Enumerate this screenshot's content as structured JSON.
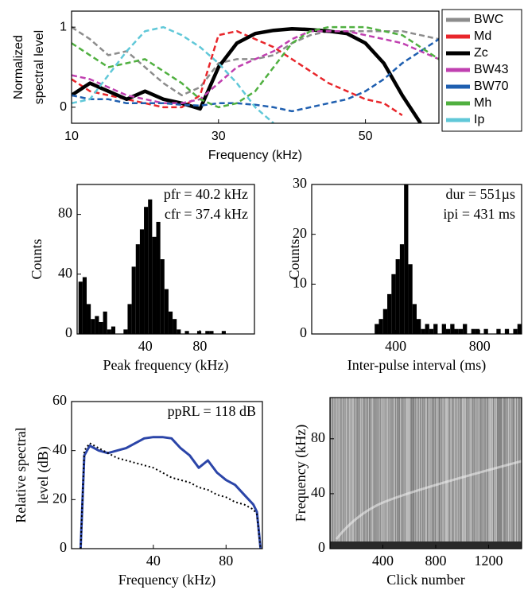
{
  "chart_data": [
    {
      "type": "line",
      "ylabel": [
        "Normalized",
        "spectral level"
      ],
      "xlabel": "Frequency (kHz)",
      "x": [
        10,
        12.5,
        15,
        17.5,
        20,
        22.5,
        25,
        27.5,
        30,
        32.5,
        35,
        37.5,
        40,
        42.5,
        45,
        47.5,
        50,
        52.5,
        55,
        57.5,
        60
      ],
      "xlim": [
        10,
        60
      ],
      "xticks": [
        10,
        30,
        50
      ],
      "ylim": [
        -0.2,
        1.2
      ],
      "yticks": [
        0,
        1
      ],
      "legend": "outside-right",
      "grid": false,
      "series": [
        {
          "name": "BWC",
          "color": "#8c8c8c",
          "line_style": "dashed",
          "line_width": 2.5,
          "values": [
            1.0,
            0.85,
            0.65,
            0.7,
            0.5,
            0.3,
            0.15,
            0.25,
            0.55,
            0.6,
            0.6,
            0.65,
            0.8,
            0.9,
            0.95,
            0.95,
            0.95,
            0.95,
            0.95,
            0.9,
            0.85
          ]
        },
        {
          "name": "Md",
          "color": "#e8262b",
          "line_style": "dashed",
          "line_width": 2.5,
          "values": [
            0.35,
            0.2,
            0.15,
            0.1,
            0.05,
            0.0,
            0.0,
            0.15,
            0.9,
            0.95,
            0.85,
            0.75,
            0.6,
            0.45,
            0.3,
            0.2,
            0.1,
            0.05,
            -0.1,
            null,
            null
          ]
        },
        {
          "name": "Zc",
          "color": "#000000",
          "line_style": "solid",
          "line_width": 4.5,
          "values": [
            0.15,
            0.3,
            0.2,
            0.1,
            0.2,
            0.1,
            0.05,
            -0.02,
            0.5,
            0.8,
            0.92,
            0.96,
            0.98,
            0.97,
            0.95,
            0.92,
            0.8,
            0.55,
            0.15,
            -0.2,
            null
          ]
        },
        {
          "name": "BW43",
          "color": "#c040b0",
          "line_style": "dashed",
          "line_width": 2.5,
          "values": [
            0.4,
            0.35,
            0.25,
            0.15,
            0.1,
            0.05,
            0.05,
            0.1,
            0.3,
            0.5,
            0.6,
            0.7,
            0.85,
            0.95,
            0.95,
            0.95,
            0.9,
            0.85,
            0.8,
            0.7,
            0.6
          ]
        },
        {
          "name": "BW70",
          "color": "#1f5fb0",
          "line_style": "dashed",
          "line_width": 2.5,
          "values": [
            0.15,
            0.1,
            0.1,
            0.05,
            0.05,
            0.05,
            0.03,
            0.02,
            0.05,
            0.05,
            0.03,
            0.0,
            -0.05,
            0.0,
            0.05,
            0.1,
            0.2,
            0.35,
            0.55,
            0.7,
            0.85
          ]
        },
        {
          "name": "Mh",
          "color": "#50b040",
          "line_style": "dashed",
          "line_width": 2.5,
          "values": [
            0.8,
            0.65,
            0.5,
            0.55,
            0.6,
            0.45,
            0.3,
            0.1,
            0.0,
            0.05,
            0.2,
            0.5,
            0.8,
            0.95,
            1.0,
            1.0,
            1.0,
            0.95,
            0.9,
            0.75,
            0.6
          ]
        },
        {
          "name": "Ip",
          "color": "#60c8d8",
          "line_style": "dashed",
          "line_width": 2.5,
          "values": [
            0.05,
            0.1,
            0.4,
            0.7,
            0.95,
            1.0,
            0.9,
            0.75,
            0.55,
            0.3,
            0.0,
            -0.2,
            null,
            null,
            null,
            null,
            null,
            null,
            null,
            null,
            null
          ]
        }
      ]
    },
    {
      "type": "histogram",
      "ylabel": [
        "Counts"
      ],
      "xlabel": "Peak frequency (kHz)",
      "annotations": [
        "pfr = 40.2 kHz",
        "cfr = 37.4 kHz"
      ],
      "bins": [
        -9,
        -6,
        -3,
        0,
        3,
        6,
        9,
        12,
        15,
        18,
        21,
        24,
        27,
        30,
        33,
        36,
        39,
        42,
        45,
        48,
        51,
        54,
        57,
        60,
        63,
        66,
        69,
        72,
        75,
        78,
        81,
        84,
        87,
        90,
        93,
        96,
        99,
        102,
        105
      ],
      "counts": [
        35,
        38,
        20,
        10,
        12,
        8,
        15,
        3,
        5,
        0,
        0,
        3,
        20,
        45,
        60,
        70,
        85,
        90,
        65,
        75,
        50,
        30,
        15,
        10,
        3,
        0,
        2,
        0,
        0,
        2,
        0,
        2,
        2,
        0,
        0,
        2,
        0,
        0
      ],
      "color": "#000000",
      "xlim": [
        -10,
        120
      ],
      "xticks": [
        40,
        80
      ],
      "ylim": [
        0,
        100
      ],
      "yticks": [
        0,
        40,
        80
      ],
      "grid": false
    },
    {
      "type": "histogram",
      "ylabel": [
        "Counts"
      ],
      "xlabel": "Inter-pulse interval (ms)",
      "annotations": [
        "dur = 551µs",
        "ipi = 431 ms"
      ],
      "bins": [
        300,
        320,
        340,
        360,
        380,
        400,
        420,
        440,
        460,
        480,
        500,
        520,
        540,
        560,
        580,
        600,
        620,
        640,
        660,
        680,
        700,
        720,
        740,
        760,
        780,
        800,
        820,
        840,
        860,
        880,
        900,
        920,
        940,
        960,
        980,
        1000
      ],
      "counts": [
        2,
        3,
        5,
        8,
        12,
        15,
        18,
        30,
        14,
        6,
        3,
        1,
        2,
        1,
        2,
        0,
        2,
        1,
        2,
        1,
        1,
        2,
        0,
        1,
        1,
        0,
        1,
        0,
        0,
        1,
        0,
        1,
        0,
        1,
        2
      ],
      "color": "#000000",
      "xlim": [
        0,
        1000
      ],
      "xticks": [
        400,
        800
      ],
      "ylim": [
        0,
        30
      ],
      "yticks": [
        0,
        10,
        20,
        30
      ],
      "grid": false
    },
    {
      "type": "line",
      "ylabel": [
        "Relative spectral",
        "level (dB)"
      ],
      "xlabel": "Frequency (kHz)",
      "annotations": [
        "ppRL = 118 dB"
      ],
      "x": [
        0,
        2,
        5,
        10,
        15,
        20,
        25,
        30,
        35,
        40,
        45,
        50,
        55,
        60,
        65,
        70,
        75,
        80,
        85,
        90,
        95,
        97,
        99
      ],
      "xlim": [
        -5,
        100
      ],
      "xticks": [
        40,
        80
      ],
      "ylim": [
        0,
        60
      ],
      "yticks": [
        0,
        20,
        40,
        60
      ],
      "grid": false,
      "series": [
        {
          "color": "#2b45a8",
          "line_style": "solid",
          "line_width": 3,
          "values": [
            0,
            38,
            42,
            40,
            39,
            40,
            41,
            43,
            45,
            45.5,
            45.5,
            45,
            41,
            38,
            33,
            36,
            31,
            28,
            26,
            22,
            18,
            15,
            0
          ]
        },
        {
          "color": "#000000",
          "line_style": "dotted",
          "line_width": 2,
          "values": [
            0,
            40,
            43,
            41,
            39,
            37,
            36,
            35,
            34,
            33,
            31,
            29,
            28,
            27,
            25,
            24,
            22,
            21,
            19,
            18,
            16,
            14,
            0
          ]
        }
      ]
    },
    {
      "type": "spectrogram",
      "ylabel": [
        "Frequency (kHz)"
      ],
      "xlabel": "Click number",
      "xlim": [
        0,
        1450
      ],
      "xticks": [
        400,
        800,
        1200
      ],
      "ylim": [
        0,
        110
      ],
      "yticks": [
        0,
        40,
        80
      ],
      "grid": false
    }
  ]
}
